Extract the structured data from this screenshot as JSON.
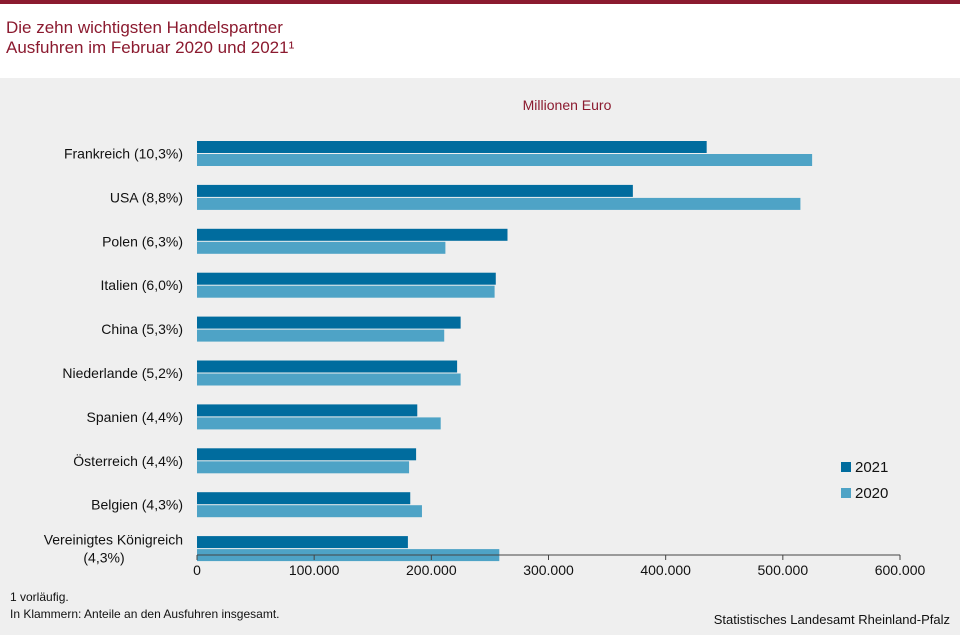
{
  "header": {
    "title_line1": "Die zehn wichtigsten Handelspartner",
    "title_line2": "Ausfuhren im Februar 2020 und 2021¹"
  },
  "colors": {
    "brand": "#8b1a2f",
    "series_2021": "#006c9e",
    "series_2020": "#4ea3c6"
  },
  "chart_data": {
    "type": "bar",
    "orientation": "horizontal",
    "unit_label": "Millionen Euro",
    "categories": [
      [
        "Frankreich (10,3%)"
      ],
      [
        "USA (8,8%)"
      ],
      [
        "Polen (6,3%)"
      ],
      [
        "Italien (6,0%)"
      ],
      [
        "China (5,3%)"
      ],
      [
        "Niederlande (5,2%)"
      ],
      [
        "Spanien (4,4%)"
      ],
      [
        "Österreich (4,4%)"
      ],
      [
        "Belgien (4,3%)"
      ],
      [
        "Vereinigtes Königreich",
        "(4,3%)"
      ]
    ],
    "series": [
      {
        "name": "2021",
        "values": [
          435000,
          372000,
          265000,
          255000,
          225000,
          222000,
          188000,
          187000,
          182000,
          180000
        ]
      },
      {
        "name": "2020",
        "values": [
          525000,
          515000,
          212000,
          254000,
          211000,
          225000,
          208000,
          181000,
          192000,
          258000
        ]
      }
    ],
    "xlim": [
      0,
      600000
    ],
    "xticks": [
      0,
      100000,
      200000,
      300000,
      400000,
      500000,
      600000
    ],
    "xtick_labels": [
      "0",
      "100.000",
      "200.000",
      "300.000",
      "400.000",
      "500.000",
      "600.000"
    ],
    "grid": false,
    "legend_position": "bottom-right"
  },
  "footnotes": {
    "note1": "1 vorläufig.",
    "note2": "In Klammern: Anteile an den Ausfuhren insgesamt."
  },
  "source": "Statistisches Landesamt Rheinland-Pfalz"
}
